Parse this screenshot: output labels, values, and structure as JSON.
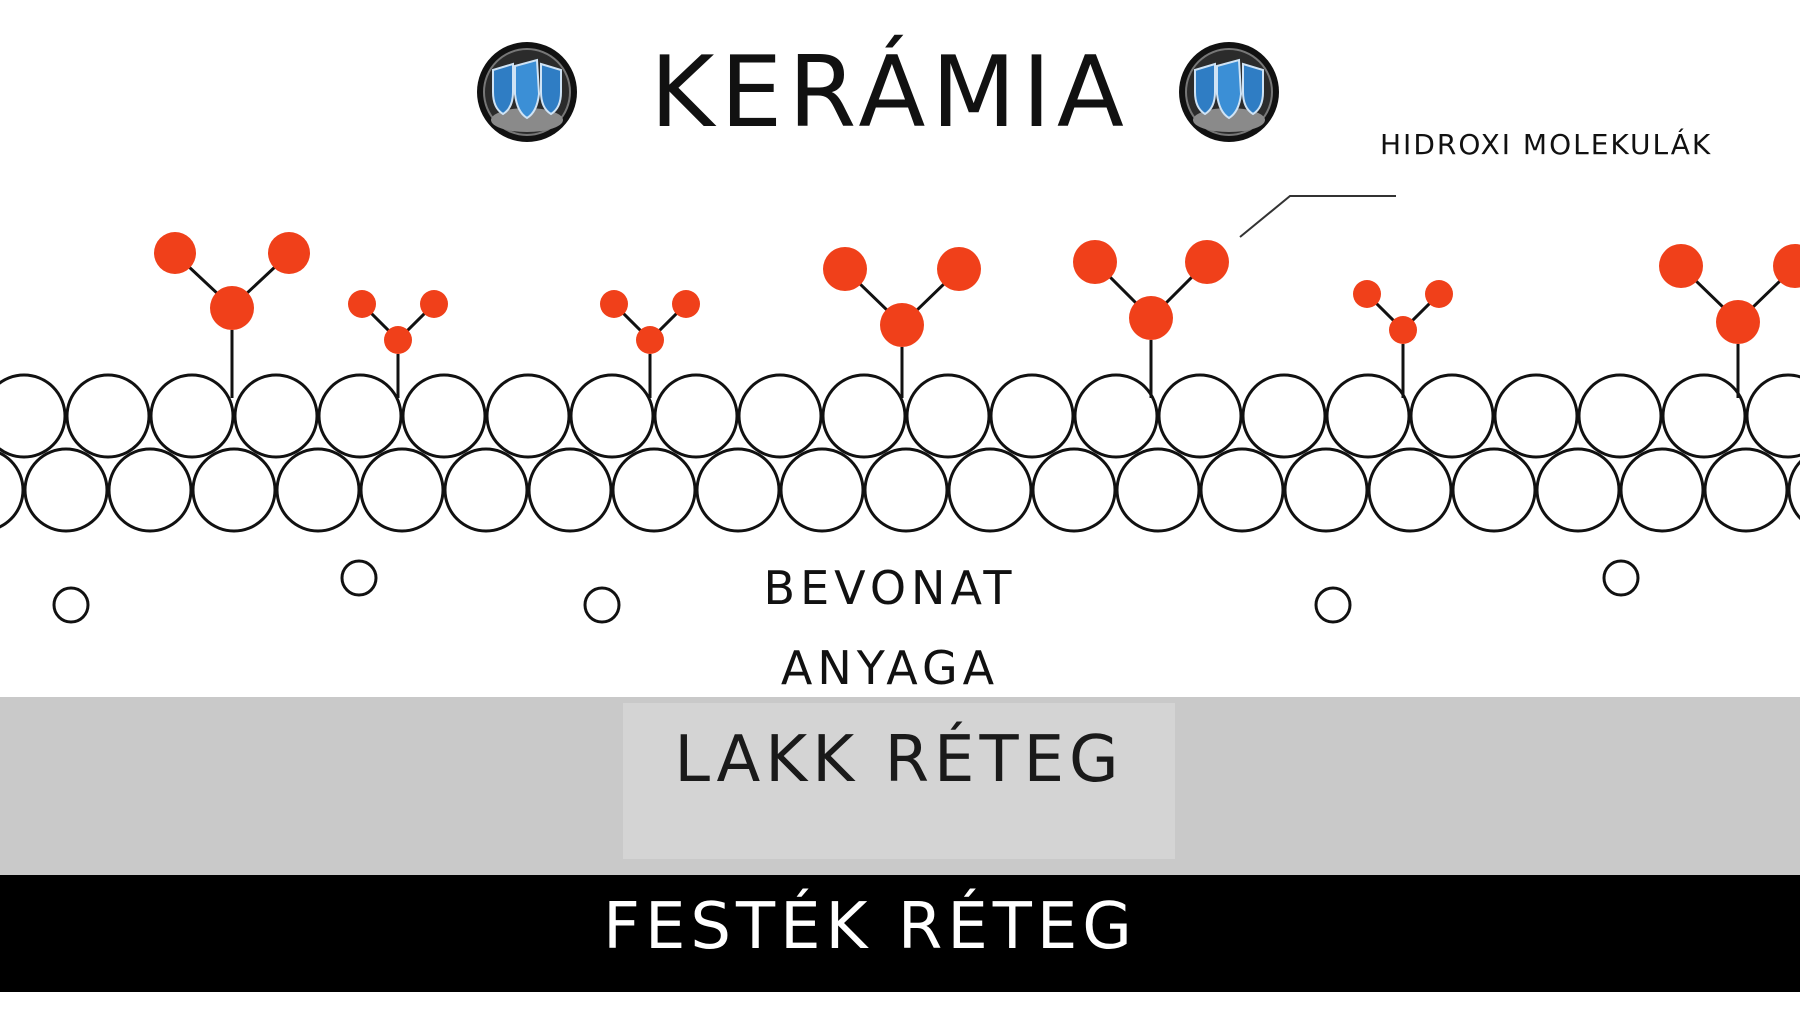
{
  "title": "KERÁMIA",
  "callout": {
    "label": "HIDROXI MOLEKULÁK"
  },
  "coating": {
    "line1": "BEVONAT",
    "line2": "ANYAGA"
  },
  "layers": {
    "lakk": "LAKK RÉTEG",
    "festek": "FESTÉK RÉTEG"
  },
  "colors": {
    "molecule": "#f0401a",
    "lakk_band": "#c9c9c9",
    "festek_band": "#000000"
  },
  "icons": {
    "logo": "shield-logo-icon"
  }
}
